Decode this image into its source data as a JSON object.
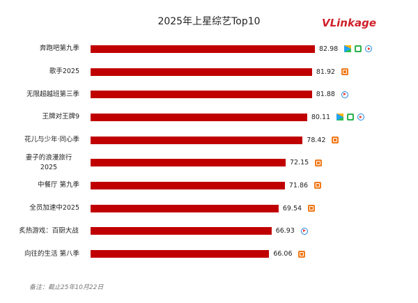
{
  "chart_data": {
    "type": "bar",
    "orientation": "horizontal",
    "title": "2025年上星综艺Top10",
    "logo": "VLinkage",
    "categories": [
      "奔跑吧第九季",
      "歌手2025",
      "无限超越班第三季",
      "王牌对王牌9",
      "花儿与少年·同心季",
      "妻子的浪漫旅行2025",
      "中餐厅 第九季",
      "全员加速中2025",
      "炙热游戏：百厨大战",
      "向往的生活 第八季"
    ],
    "values": [
      82.98,
      81.92,
      81.88,
      80.11,
      78.42,
      72.15,
      71.86,
      69.54,
      66.93,
      66.06
    ],
    "color": "#c00000",
    "note": "备注：截止25年10月22日"
  }
}
